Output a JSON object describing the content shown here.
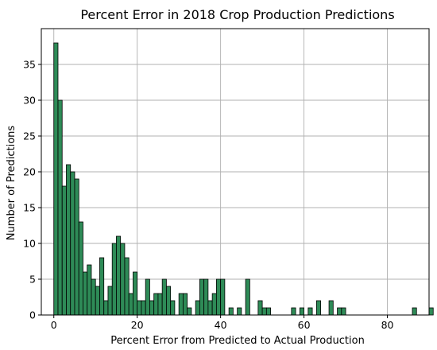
{
  "chart_data": {
    "type": "bar",
    "title": "Percent Error in 2018 Crop Production Predictions",
    "xlabel": "Percent Error from Predicted to Actual Production",
    "ylabel": "Number of Predictions",
    "bin_width": 1.0,
    "bin_edges_start": 0,
    "values": [
      38,
      30,
      18,
      21,
      20,
      19,
      13,
      6,
      7,
      5,
      4,
      8,
      2,
      4,
      10,
      11,
      10,
      8,
      3,
      6,
      2,
      2,
      5,
      2,
      3,
      3,
      5,
      4,
      2,
      0,
      3,
      3,
      1,
      0,
      2,
      5,
      5,
      2,
      3,
      5,
      5,
      0,
      1,
      0,
      1,
      0,
      5,
      0,
      0,
      2,
      1,
      1,
      0,
      0,
      0,
      0,
      0,
      1,
      0,
      1,
      0,
      1,
      0,
      2,
      0,
      0,
      2,
      0,
      1,
      1,
      0,
      0,
      0,
      0,
      0,
      0,
      0,
      0,
      0,
      0,
      0,
      0,
      0,
      0,
      0,
      0,
      1,
      0,
      0,
      0,
      1
    ],
    "bar_color": "#2e8b57",
    "bar_edge_color": "#000000",
    "xlim": [
      -3,
      90
    ],
    "ylim": [
      0,
      40
    ],
    "xticks": [
      0,
      20,
      40,
      60,
      80
    ],
    "yticks": [
      0,
      5,
      10,
      15,
      20,
      25,
      30,
      35
    ],
    "grid": true
  }
}
